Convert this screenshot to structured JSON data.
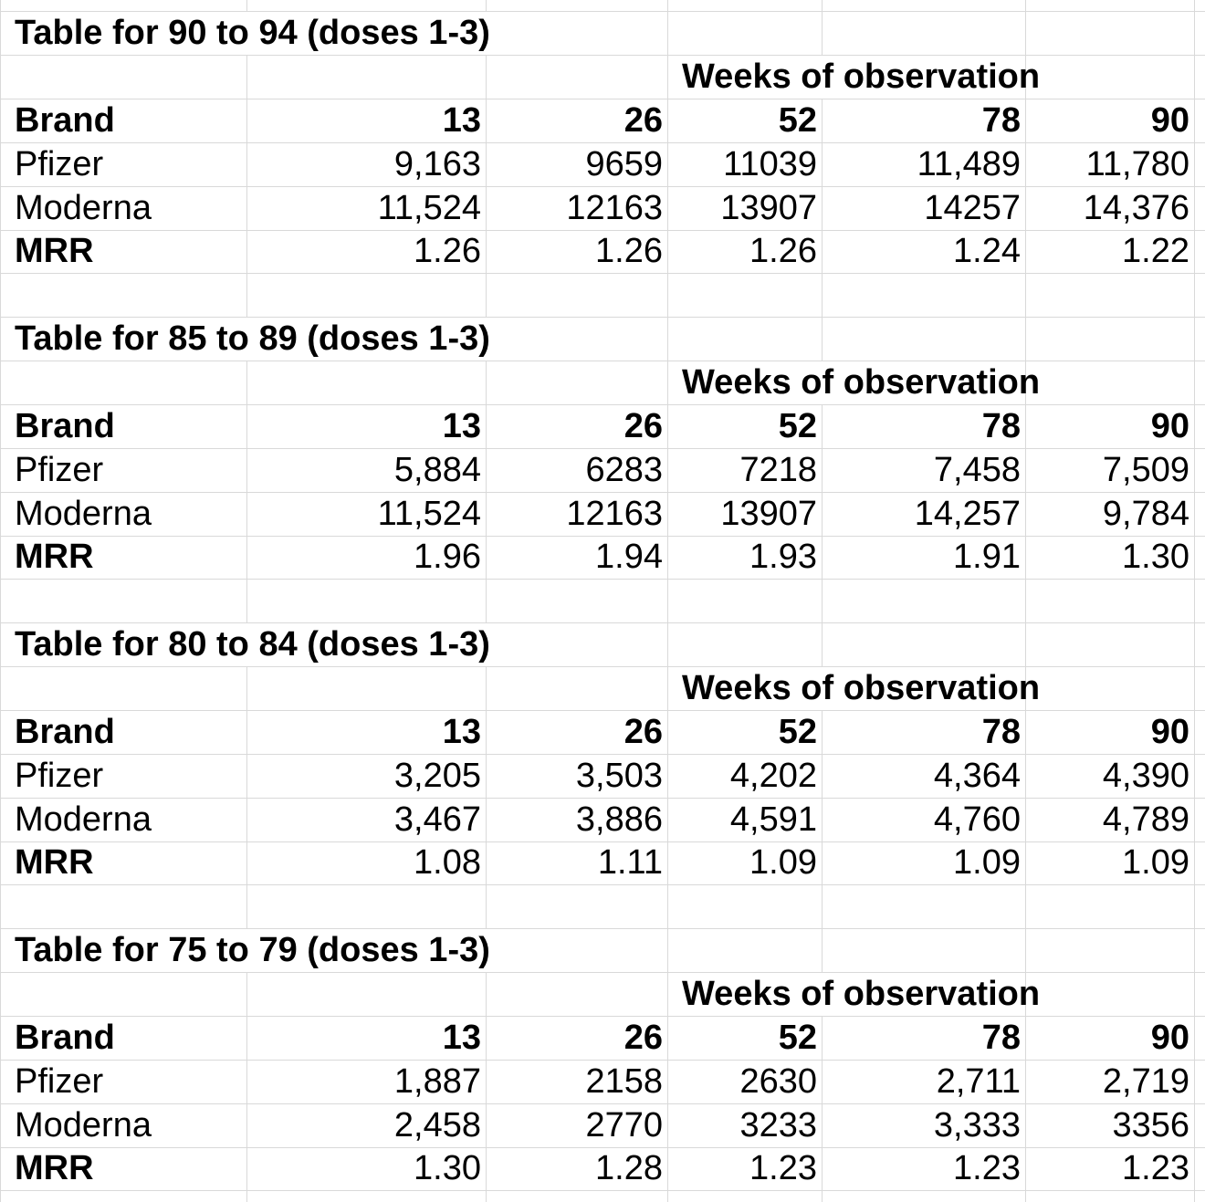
{
  "colors": {
    "gridline": "#d9d9d9",
    "text": "#000000",
    "background": "#ffffff"
  },
  "tables": [
    {
      "title": "Table for  90 to 94 (doses 1-3)",
      "weeks_label": "Weeks of observation",
      "col_headers": [
        "Brand",
        "13",
        "26",
        "52",
        "78",
        "90"
      ],
      "rows": [
        {
          "label": "Pfizer",
          "values": [
            "9,163",
            "9659",
            "11039",
            "11,489",
            "11,780"
          ]
        },
        {
          "label": "Moderna",
          "values": [
            "11,524",
            "12163",
            "13907",
            "14257",
            "14,376"
          ]
        },
        {
          "label": "MRR",
          "values": [
            "1.26",
            "1.26",
            "1.26",
            "1.24",
            "1.22"
          ]
        }
      ]
    },
    {
      "title": "Table for  85 to 89 (doses 1-3)",
      "weeks_label": "Weeks of observation",
      "col_headers": [
        "Brand",
        "13",
        "26",
        "52",
        "78",
        "90"
      ],
      "rows": [
        {
          "label": "Pfizer",
          "values": [
            "5,884",
            "6283",
            "7218",
            "7,458",
            "7,509"
          ]
        },
        {
          "label": "Moderna",
          "values": [
            "11,524",
            "12163",
            "13907",
            "14,257",
            "9,784"
          ]
        },
        {
          "label": "MRR",
          "values": [
            "1.96",
            "1.94",
            "1.93",
            "1.91",
            "1.30"
          ]
        }
      ]
    },
    {
      "title": "Table for  80 to 84 (doses 1-3)",
      "weeks_label": "Weeks of observation",
      "col_headers": [
        "Brand",
        "13",
        "26",
        "52",
        "78",
        "90"
      ],
      "rows": [
        {
          "label": "Pfizer",
          "values": [
            "3,205",
            "3,503",
            "4,202",
            "4,364",
            "4,390"
          ]
        },
        {
          "label": "Moderna",
          "values": [
            "3,467",
            "3,886",
            "4,591",
            "4,760",
            "4,789"
          ]
        },
        {
          "label": "MRR",
          "values": [
            "1.08",
            "1.11",
            "1.09",
            "1.09",
            "1.09"
          ]
        }
      ]
    },
    {
      "title": "Table for  75 to 79 (doses 1-3)",
      "weeks_label": "Weeks of observation",
      "col_headers": [
        "Brand",
        "13",
        "26",
        "52",
        "78",
        "90"
      ],
      "rows": [
        {
          "label": "Pfizer",
          "values": [
            "1,887",
            "2158",
            "2630",
            "2,711",
            "2,719"
          ]
        },
        {
          "label": "Moderna",
          "values": [
            "2,458",
            "2770",
            "3233",
            "3,333",
            "3356"
          ]
        },
        {
          "label": "MRR",
          "values": [
            "1.30",
            "1.28",
            "1.23",
            "1.23",
            "1.23"
          ]
        }
      ]
    }
  ]
}
